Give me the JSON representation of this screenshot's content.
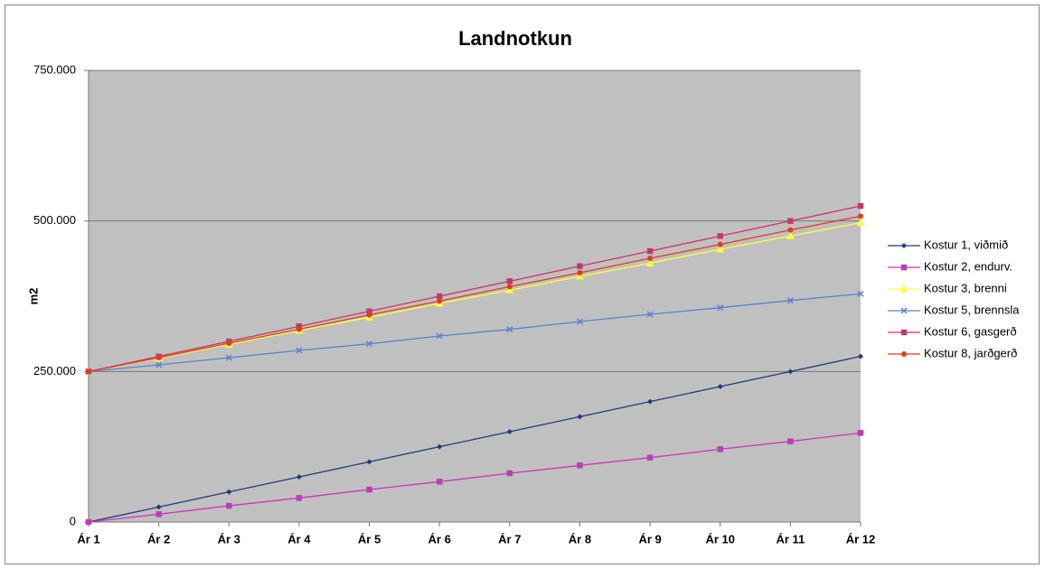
{
  "chart_data": {
    "type": "line",
    "title": "Landnotkun",
    "y_label": "m2",
    "categories": [
      "Ár 1",
      "Ár 2",
      "Ár 3",
      "Ár 4",
      "Ár 5",
      "Ár 6",
      "Ár 7",
      "Ár 8",
      "Ár 9",
      "Ár 10",
      "Ár 11",
      "Ár 12"
    ],
    "ylim": [
      0,
      750000
    ],
    "yticks": [
      0,
      {
        "value": 250000,
        "label": "250.000"
      },
      {
        "value": 500000,
        "label": "500.000"
      },
      {
        "value": 750000,
        "label": "750.000"
      }
    ],
    "grid": true,
    "legend": "right",
    "series": [
      {
        "name": "Kostur 1, viðmið",
        "color": "#1f3a7a",
        "marker": "diamond",
        "values": [
          0,
          25000,
          50000,
          75000,
          100000,
          125000,
          150000,
          175000,
          200000,
          225000,
          250000,
          275000
        ]
      },
      {
        "name": "Kostur 2, endurv.",
        "color": "#cc33bb",
        "marker": "square",
        "values": [
          0,
          13000,
          27000,
          40000,
          54000,
          67000,
          81000,
          94000,
          107000,
          121000,
          134000,
          148000
        ]
      },
      {
        "name": "Kostur 3, brenni",
        "color": "#ffff40",
        "marker": "triangle",
        "values": [
          250000,
          272000,
          295000,
          318000,
          340000,
          363000,
          385000,
          408000,
          430000,
          453000,
          475000,
          497000
        ]
      },
      {
        "name": "Kostur 5, brennsla",
        "color": "#5b80d0",
        "marker": "x",
        "values": [
          250000,
          261000,
          273000,
          285000,
          296000,
          309000,
          320000,
          333000,
          345000,
          356000,
          368000,
          379000
        ]
      },
      {
        "name": "Kostur 6, gasgerð",
        "color": "#cc3366",
        "marker": "square",
        "values": [
          250000,
          275000,
          300000,
          325000,
          350000,
          375000,
          400000,
          425000,
          450000,
          475000,
          500000,
          525000
        ]
      },
      {
        "name": "Kostur 8, jarðgerð",
        "color": "#e03c1e",
        "marker": "circle",
        "values": [
          250000,
          273000,
          297000,
          320000,
          344000,
          367000,
          391000,
          414000,
          438000,
          461000,
          485000,
          508000
        ]
      }
    ]
  }
}
